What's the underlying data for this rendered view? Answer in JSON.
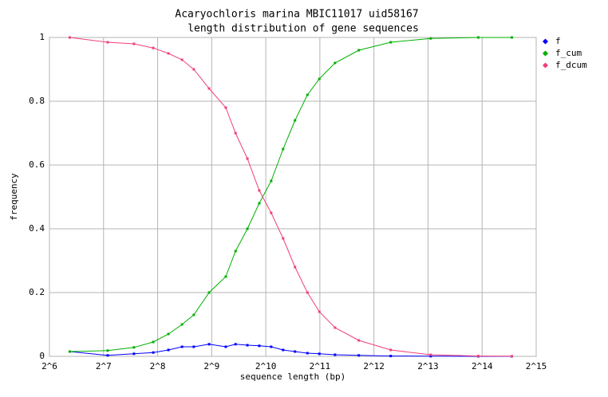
{
  "chart_data": {
    "type": "line",
    "title": "Acaryochloris marina MBIC11017 uid58167",
    "subtitle": "length distribution of gene sequences",
    "x_label": "sequence length (bp)",
    "y_label": "frequency",
    "log_x": true,
    "grid": true,
    "legend": "right",
    "x": [
      83,
      135,
      189,
      242,
      294,
      350,
      407,
      495,
      613,
      695,
      809,
      942,
      1097,
      1278,
      1489,
      1746,
      2034,
      2487,
      3373,
      5078,
      8478,
      15600,
      23976
    ],
    "series": [
      {
        "name": "f",
        "color": "#0000ff",
        "values": [
          0.015,
          0.003,
          0.008,
          0.012,
          0.02,
          0.03,
          0.03,
          0.038,
          0.03,
          0.038,
          0.035,
          0.033,
          0.03,
          0.02,
          0.015,
          0.01,
          0.008,
          0.005,
          0.003,
          0.001,
          0.0005,
          0,
          0
        ]
      },
      {
        "name": "f_cum",
        "color": "#00b000",
        "values": [
          0.015,
          0.018,
          0.028,
          0.045,
          0.07,
          0.1,
          0.13,
          0.2,
          0.25,
          0.33,
          0.4,
          0.48,
          0.55,
          0.65,
          0.74,
          0.82,
          0.87,
          0.92,
          0.96,
          0.985,
          0.997,
          1,
          1
        ]
      },
      {
        "name": "f_dcum",
        "color": "#f0407a",
        "values": [
          1,
          0.985,
          0.98,
          0.967,
          0.95,
          0.93,
          0.9,
          0.84,
          0.78,
          0.7,
          0.62,
          0.52,
          0.45,
          0.37,
          0.28,
          0.2,
          0.14,
          0.09,
          0.05,
          0.02,
          0.005,
          0.001,
          0.0005
        ]
      }
    ],
    "xlim": [
      64,
      32768
    ],
    "xticks": [
      {
        "value": 64,
        "label": "2^6"
      },
      {
        "value": 128,
        "label": "2^7"
      },
      {
        "value": 256,
        "label": "2^8"
      },
      {
        "value": 512,
        "label": "2^9"
      },
      {
        "value": 1024,
        "label": "2^10"
      },
      {
        "value": 2048,
        "label": "2^11"
      },
      {
        "value": 4096,
        "label": "2^12"
      },
      {
        "value": 8192,
        "label": "2^13"
      },
      {
        "value": 16384,
        "label": "2^14"
      },
      {
        "value": 32768,
        "label": "2^15"
      }
    ],
    "ylim": [
      0,
      1
    ],
    "yticks": [
      0,
      0.2,
      0.4,
      0.6,
      0.8,
      1
    ]
  }
}
